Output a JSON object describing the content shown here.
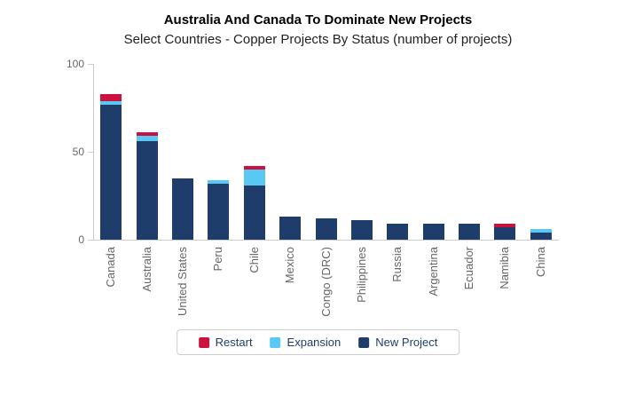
{
  "chart_data": {
    "type": "bar",
    "stacked": true,
    "title": "Australia And Canada To Dominate New Projects",
    "subtitle": "Select Countries - Copper Projects By Status (number of projects)",
    "categories": [
      "Canada",
      "Australia",
      "United States",
      "Peru",
      "Chile",
      "Mexico",
      "Congo (DRC)",
      "Philippines",
      "Russia",
      "Argentina",
      "Ecuador",
      "Namibia",
      "China"
    ],
    "series": [
      {
        "name": "New Project",
        "color": "#1e3d6b",
        "values": [
          77,
          56,
          35,
          32,
          31,
          13,
          12,
          11,
          9,
          9,
          9,
          7,
          4
        ]
      },
      {
        "name": "Expansion",
        "color": "#5ac8f5",
        "values": [
          2,
          3,
          0,
          2,
          9,
          0,
          0,
          0,
          0,
          0,
          0,
          0,
          2
        ]
      },
      {
        "name": "Restart",
        "color": "#c9133e",
        "values": [
          4,
          2,
          0,
          0,
          2,
          0,
          0,
          0,
          0,
          0,
          0,
          2,
          0
        ]
      }
    ],
    "legend_order": [
      "Restart",
      "Expansion",
      "New Project"
    ],
    "legend_position": "bottom",
    "xlabel": "",
    "ylabel": "",
    "ylim": [
      0,
      100
    ],
    "yticks": [
      0,
      50,
      100
    ],
    "grid": false
  },
  "colors": {
    "axis": "#cccccc",
    "tick_label": "#666666",
    "legend_text": "#1e3d6b",
    "title": "#000000",
    "subtitle": "#222222"
  }
}
